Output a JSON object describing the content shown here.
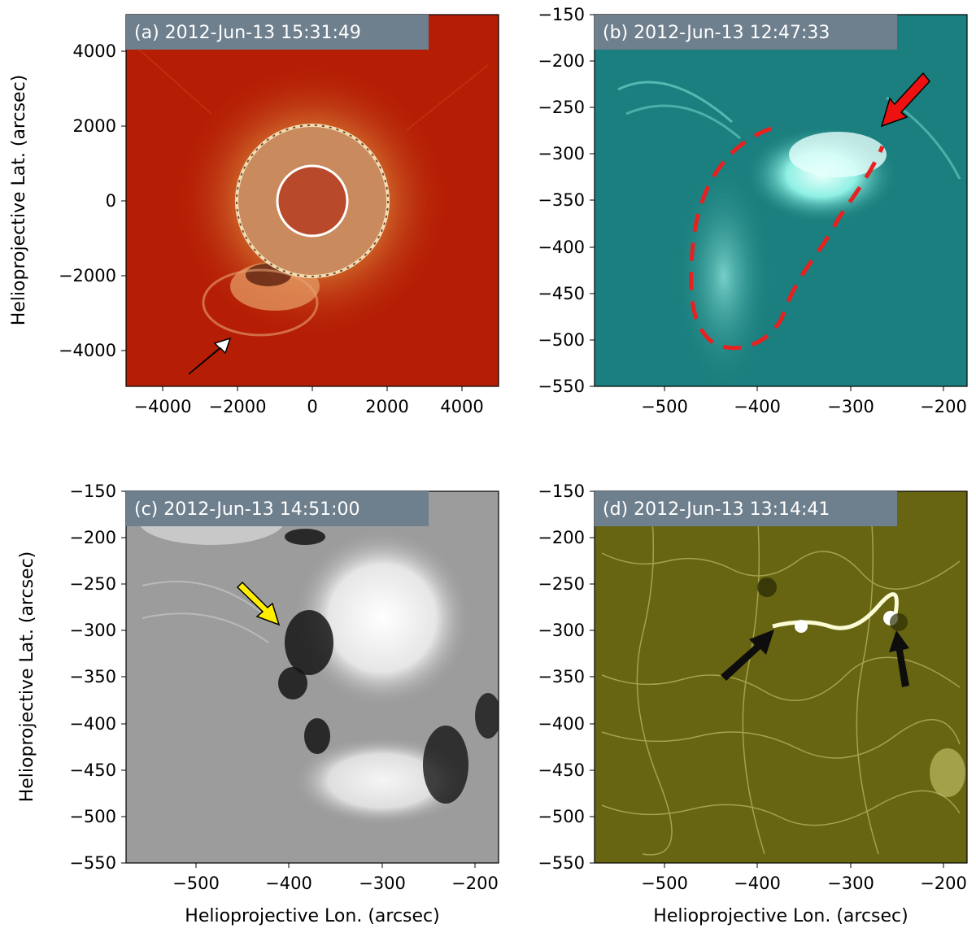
{
  "panels": [
    {
      "title": "(a) 2012-Jun-13 15:31:49",
      "ylabel": "Helioprojective Lat. (arcsec)",
      "xlabel": "",
      "xticks": [
        "−4000",
        "−2000",
        "0",
        "2000",
        "4000"
      ],
      "yticks": [
        "4000",
        "2000",
        "0",
        "−2000",
        "−4000"
      ],
      "colors": {
        "bg": "#b51e05",
        "ring": "#f3dcb0"
      },
      "arrow_color": "#ffffff"
    },
    {
      "title": "(b) 2012-Jun-13 12:47:33",
      "ylabel": "",
      "xlabel": "",
      "xticks": [
        "−500",
        "−400",
        "−300",
        "−200"
      ],
      "yticks": [
        "−150",
        "−200",
        "−250",
        "−300",
        "−350",
        "−400",
        "−450",
        "−500",
        "−550"
      ],
      "colors": {
        "bg": "#1a7f7e",
        "bright": "#c8fff6"
      },
      "arrow_color": "#ee1111"
    },
    {
      "title": "(c) 2012-Jun-13 14:51:00",
      "ylabel": "Helioprojective Lat. (arcsec)",
      "xlabel": "Helioprojective Lon. (arcsec)",
      "xticks": [
        "−500",
        "−400",
        "−300",
        "−200"
      ],
      "yticks": [
        "−150",
        "−200",
        "−250",
        "−300",
        "−350",
        "−400",
        "−450",
        "−500",
        "−550"
      ],
      "colors": {
        "bg": "#9c9c9c",
        "light": "#f4f4f4",
        "dark": "#151515"
      },
      "arrow_color": "#ffee00"
    },
    {
      "title": "(d) 2012-Jun-13 13:14:41",
      "ylabel": "",
      "xlabel": "Helioprojective Lon. (arcsec)",
      "xticks": [
        "−500",
        "−400",
        "−300",
        "−200"
      ],
      "yticks": [
        "−150",
        "−200",
        "−250",
        "−300",
        "−350",
        "−400",
        "−450",
        "−500",
        "−550"
      ],
      "colors": {
        "bg": "#676511",
        "network": "#d6d67a"
      },
      "arrow_color": "#0d0d0d"
    }
  ]
}
